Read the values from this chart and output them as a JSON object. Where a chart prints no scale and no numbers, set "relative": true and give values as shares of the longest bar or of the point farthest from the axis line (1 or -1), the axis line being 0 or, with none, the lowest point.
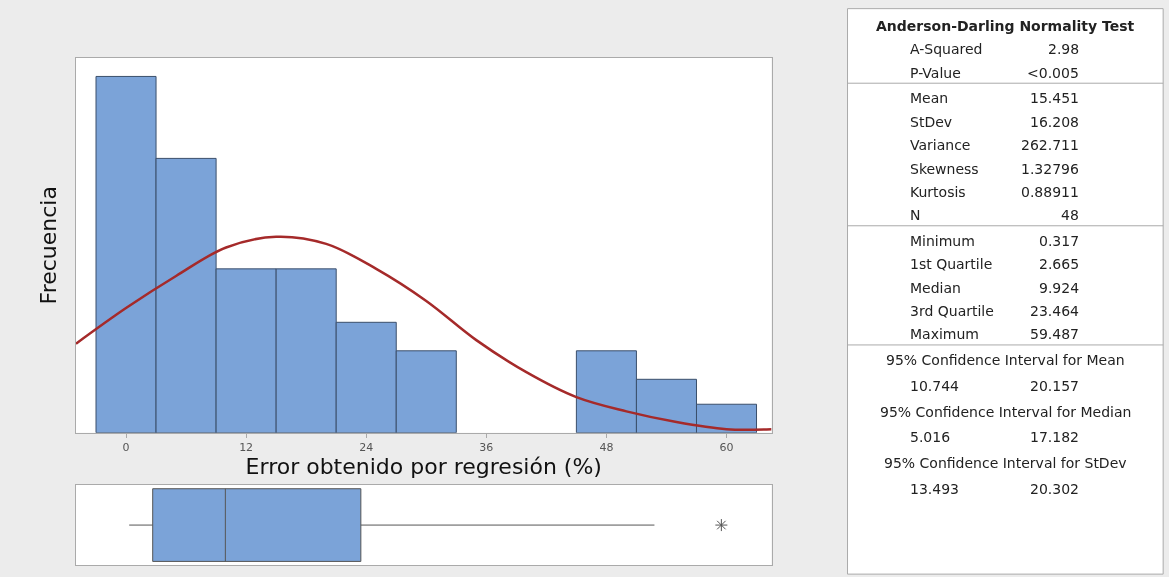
{
  "chart_data": [
    {
      "type": "histogram",
      "relative": true,
      "xlabel": "Error obtenido por regresión (%)",
      "ylabel": "Frecuencia",
      "color": "#7ba3d8",
      "bins": [
        -3,
        3,
        9,
        15,
        21,
        27,
        33,
        39,
        45,
        51,
        57,
        63
      ],
      "values": [
        1,
        0.77,
        0.46,
        0.46,
        0.31,
        0.23,
        0,
        0,
        0.23,
        0.15,
        0.08
      ],
      "series": [
        {
          "type": "line",
          "color": "#a52a2a",
          "x": [
            -5,
            0,
            5,
            10,
            15,
            20,
            25,
            30,
            35,
            40,
            45,
            50,
            55,
            60,
            64.5
          ],
          "values": [
            0.25,
            0.35,
            0.44,
            0.52,
            0.55,
            0.53,
            0.46,
            0.37,
            0.26,
            0.17,
            0.1,
            0.06,
            0.03,
            0.01,
            0.01
          ]
        }
      ],
      "xlim": [
        -5,
        64.5
      ],
      "xticks": [
        0,
        12,
        24,
        36,
        48,
        60
      ],
      "grid": false
    },
    {
      "type": "box",
      "orientation": "horizontal",
      "categories": [
        null
      ],
      "color": "#7ba3d8",
      "boxes": [
        {
          "low": 0.317,
          "q1": 2.665,
          "median": 9.924,
          "q3": 23.464,
          "high": 52.8,
          "outliers": [
            59.487
          ]
        }
      ],
      "xlim": [
        -5,
        64.5
      ],
      "tick_labels": false
    },
    {
      "type": "other",
      "title": "Anderson-Darling Normality Test",
      "annotations": [
        "A-Squared",
        "2.98",
        "P-Value",
        "<0.005",
        "Mean",
        "15.451",
        "StDev",
        "16.208",
        "Variance",
        "262.711",
        "Skewness",
        "1.32796",
        "Kurtosis",
        "0.88911",
        "N",
        "48",
        "Minimum",
        "0.317",
        "1st Quartile",
        "2.665",
        "Median",
        "9.924",
        "3rd Quartile",
        "23.464",
        "Maximum",
        "59.487",
        "95% Confidence Interval for Mean",
        "10.744",
        "20.157",
        "95% Confidence Interval for Median",
        "5.016",
        "17.182",
        "95% Confidence Interval for StDev",
        "13.493",
        "20.302"
      ]
    }
  ]
}
